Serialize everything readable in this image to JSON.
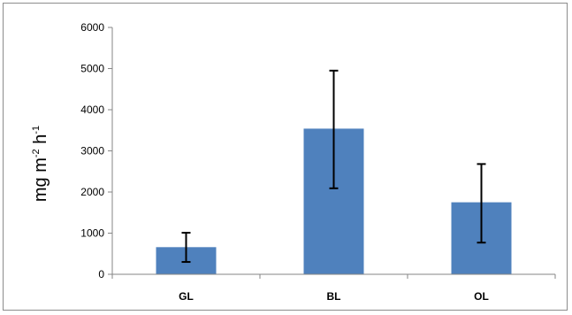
{
  "chart_data": {
    "type": "bar",
    "categories": [
      "GL",
      "BL",
      "OL"
    ],
    "values": [
      660,
      3540,
      1750
    ],
    "error_high": [
      1010,
      4950,
      2680
    ],
    "error_low": [
      300,
      2090,
      770
    ],
    "ylabel": "mg m-2 h-1",
    "ylabel_parts": {
      "base1": "mg m",
      "exp1": "-2",
      "base2": " h",
      "exp2": "-1"
    },
    "ylim": [
      0,
      6000
    ],
    "yticks": [
      "0",
      "1000",
      "2000",
      "3000",
      "4000",
      "5000",
      "6000"
    ],
    "bar_color": "#4f81bd",
    "grid": false,
    "legend": "none"
  }
}
